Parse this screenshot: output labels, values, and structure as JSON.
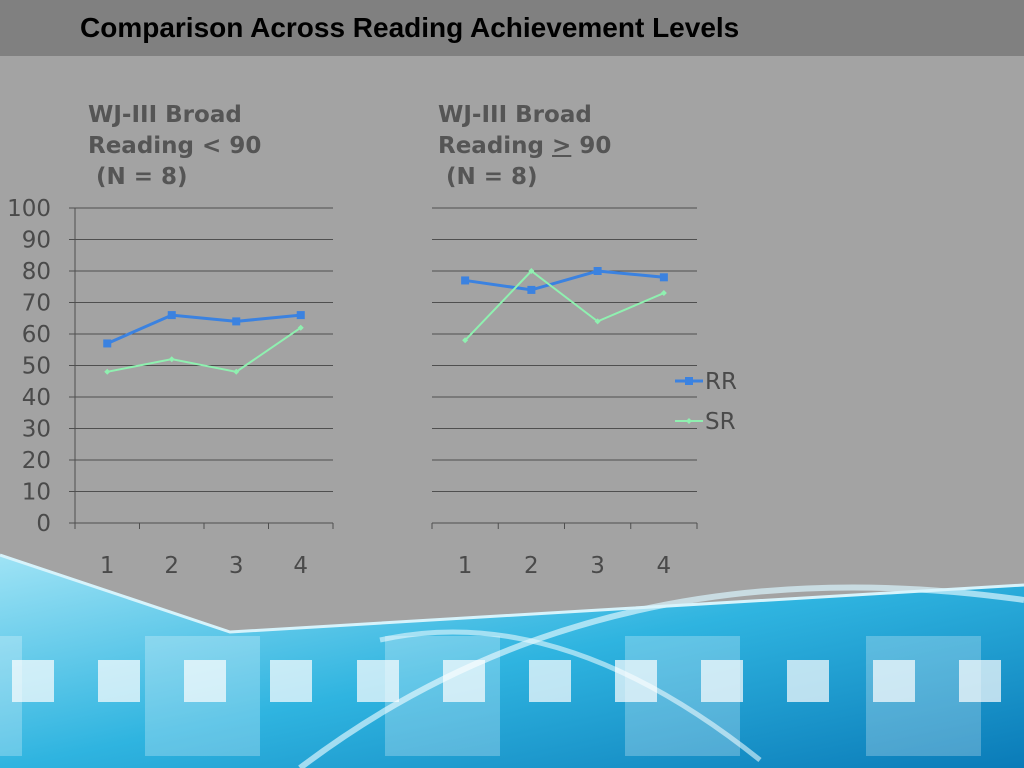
{
  "slide": {
    "title": "Comparison Across Reading Achievement Levels"
  },
  "panels": [
    {
      "line1": "WJ-III Broad",
      "line2_pre": "Reading ",
      "line2_op": "<",
      "line2_post": " 90",
      "line3": " (N = 8)"
    },
    {
      "line1": "WJ-III Broad",
      "line2_pre": "Reading ",
      "line2_op": ">",
      "line2_post": " 90",
      "line3": " (N = 8)"
    }
  ],
  "colors": {
    "RR": "#3b82e0",
    "SR": "#8ff0b0",
    "grid": "#4f4f4f"
  },
  "chart_data": [
    {
      "type": "line",
      "categories": [
        "1",
        "2",
        "3",
        "4"
      ],
      "ylim": [
        0,
        100
      ],
      "yticks": [
        "0",
        "10",
        "20",
        "30",
        "40",
        "50",
        "60",
        "70",
        "80",
        "90",
        "100"
      ],
      "grid": true,
      "series": [
        {
          "name": "RR",
          "values": [
            57,
            66,
            64,
            66
          ]
        },
        {
          "name": "SR",
          "values": [
            48,
            52,
            48,
            62
          ]
        }
      ]
    },
    {
      "type": "line",
      "categories": [
        "1",
        "2",
        "3",
        "4"
      ],
      "ylim": [
        0,
        100
      ],
      "grid": true,
      "legend": "right",
      "series": [
        {
          "name": "RR",
          "values": [
            77,
            74,
            80,
            78
          ]
        },
        {
          "name": "SR",
          "values": [
            58,
            80,
            64,
            73
          ]
        }
      ]
    }
  ]
}
